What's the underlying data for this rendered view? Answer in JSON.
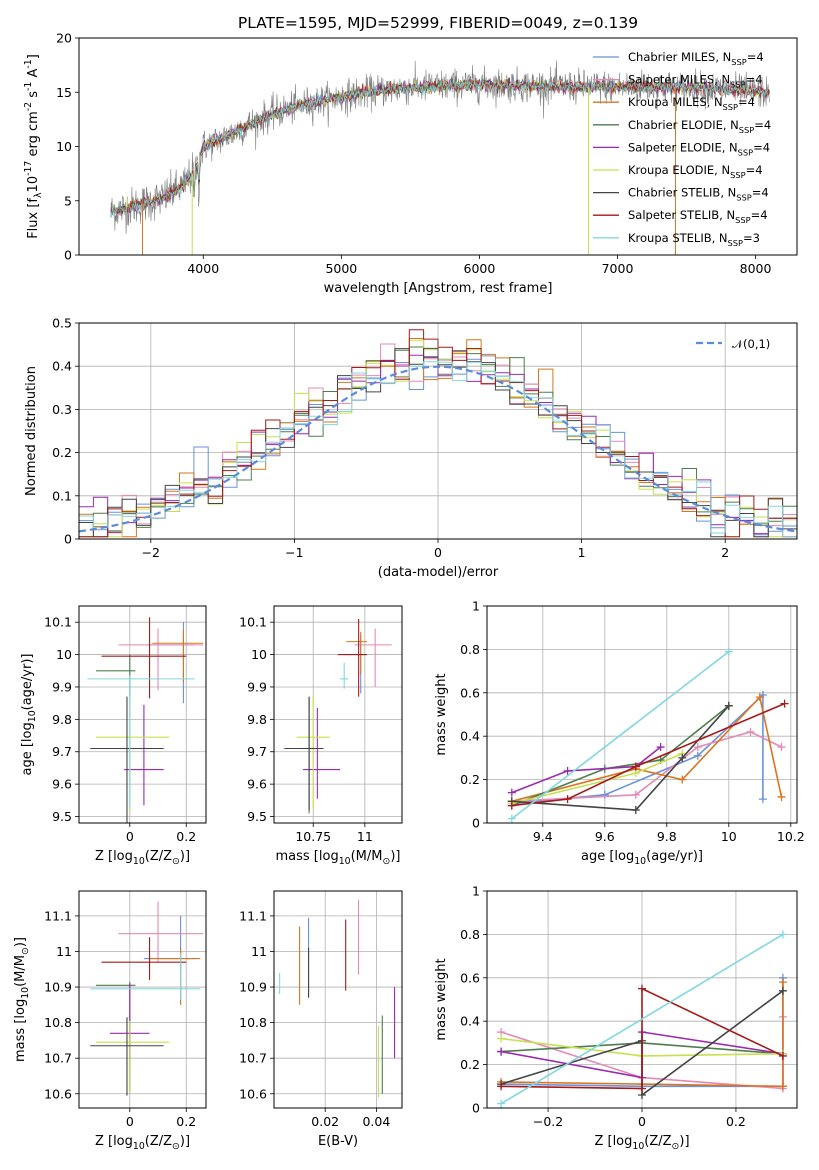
{
  "figure": {
    "title": "PLATE=1595, MJD=52999, FIBERID=0049, z=0.139"
  },
  "series_styles": [
    {
      "name": "Chabrier MILES, N$_{SSP}$=4",
      "color": "#6a91dc"
    },
    {
      "name": "Salpeter MILES, N$_{SSP}$=4",
      "color": "#e58ab5"
    },
    {
      "name": "Kroupa MILES, N$_{SSP}$=4",
      "color": "#d9751f"
    },
    {
      "name": "Chabrier ELODIE, N$_{SSP}$=4",
      "color": "#4e7d4e"
    },
    {
      "name": "Salpeter ELODIE, N$_{SSP}$=4",
      "color": "#9a2bb0"
    },
    {
      "name": "Kroupa ELODIE, N$_{SSP}$=4",
      "color": "#c7e04f"
    },
    {
      "name": "Chabrier STELIB, N$_{SSP}$=4",
      "color": "#444444"
    },
    {
      "name": "Salpeter STELIB, N$_{SSP}$=4",
      "color": "#a51a1a"
    },
    {
      "name": "Kroupa STELIB, N$_{SSP}$=3",
      "color": "#80d8df"
    }
  ],
  "chart_data": [
    {
      "id": "spectrum",
      "type": "line",
      "title": "PLATE=1595, MJD=52999, FIBERID=0049, z=0.139",
      "xlabel": "wavelength [Angstrom, rest frame]",
      "ylabel": "Flux [f$_\\lambda$10$^{-17}$ erg cm$^{-2}$ s$^{-1}$ A$^{-1}$]",
      "xlim": [
        3100,
        8300
      ],
      "ylim": [
        0,
        20
      ],
      "xticks": [
        4000,
        5000,
        6000,
        7000,
        8000
      ],
      "yticks": [
        0,
        5,
        10,
        15,
        20
      ],
      "grid": false,
      "legend_position": "top-right",
      "observed_range": [
        3330,
        8100
      ],
      "continuum_profile": {
        "x": [
          3330,
          3500,
          3700,
          3850,
          3950,
          4000,
          4150,
          4300,
          4500,
          4700,
          4900,
          5100,
          5300,
          5600,
          6000,
          6400,
          6800,
          7200,
          7600,
          8100
        ],
        "y": [
          4.0,
          4.5,
          5.2,
          6.3,
          8.0,
          10.0,
          10.8,
          11.8,
          13.0,
          13.8,
          14.3,
          14.8,
          15.2,
          15.5,
          15.7,
          15.6,
          15.5,
          15.5,
          15.4,
          15.0
        ]
      }
    },
    {
      "id": "residuals",
      "type": "step",
      "xlabel": "(data-model)/error",
      "ylabel": "Normed distribution",
      "xlim": [
        -2.5,
        2.5
      ],
      "ylim": [
        0,
        0.5
      ],
      "xticks": [
        -2,
        -1,
        0,
        1,
        2
      ],
      "yticks": [
        0.0,
        0.1,
        0.2,
        0.3,
        0.4,
        0.5
      ],
      "grid": true,
      "legend_position": "top-right",
      "legend": "$\\mathcal{N}(0,1)$",
      "bin_width": 0.1,
      "bins_start": -2.5
    },
    {
      "id": "age_vs_Z",
      "type": "errorbar",
      "xlabel": "Z [log$_{10}$(Z/Z$_\\odot$)]",
      "ylabel": "age  [log$_{10}$($age/yr$)]",
      "xlim": [
        -0.18,
        0.27
      ],
      "ylim": [
        9.48,
        10.15
      ],
      "xticks": [
        0.0,
        0.2
      ],
      "yticks": [
        9.5,
        9.6,
        9.7,
        9.8,
        9.9,
        10.0,
        10.1
      ],
      "grid": true,
      "points": [
        {
          "x": 0.19,
          "xerr": [
            0.13,
            0.04
          ],
          "y": 10.03,
          "yerr": [
            0.18,
            0.07
          ]
        },
        {
          "x": 0.1,
          "xerr": [
            0.14,
            0.16
          ],
          "y": 10.03,
          "yerr": [
            0.14,
            0.05
          ]
        },
        {
          "x": 0.19,
          "xerr": [
            0.11,
            0.07
          ],
          "y": 10.035,
          "yerr": [
            0.12,
            0.04
          ]
        },
        {
          "x": 0.0,
          "xerr": [
            0.12,
            0.02
          ],
          "y": 9.95,
          "yerr": [
            0.08,
            0.05
          ]
        },
        {
          "x": 0.05,
          "xerr": [
            0.07,
            0.07
          ],
          "y": 9.645,
          "yerr": [
            0.11,
            0.2
          ]
        },
        {
          "x": 0.0,
          "xerr": [
            0.12,
            0.14
          ],
          "y": 9.745,
          "yerr": [
            0.23,
            0.13
          ]
        },
        {
          "x": -0.01,
          "xerr": [
            0.13,
            0.13
          ],
          "y": 9.71,
          "yerr": [
            0.25,
            0.16
          ]
        },
        {
          "x": 0.07,
          "xerr": [
            0.17,
            0.13
          ],
          "y": 9.995,
          "yerr": [
            0.13,
            0.12
          ]
        },
        {
          "x": 0.0,
          "xerr": [
            0.15,
            0.23
          ],
          "y": 9.925,
          "yerr": [
            0.4,
            0.01
          ]
        }
      ]
    },
    {
      "id": "age_vs_mass",
      "type": "errorbar",
      "xlabel": "mass [log$_{10}$($M/M_\\odot$)]",
      "ylabel": "",
      "xlim": [
        10.56,
        11.18
      ],
      "ylim": [
        9.48,
        10.15
      ],
      "xticks": [
        10.75,
        11.0
      ],
      "yticks": [
        9.5,
        9.6,
        9.7,
        9.8,
        9.9,
        10.0,
        10.1
      ],
      "grid": true,
      "points": [
        {
          "x": 10.98,
          "xerr": [
            0.08,
            0.03
          ],
          "y": 10.0,
          "yerr": [
            0.12,
            0.06
          ]
        },
        {
          "x": 11.05,
          "xerr": [
            0.1,
            0.08
          ],
          "y": 10.03,
          "yerr": [
            0.13,
            0.05
          ]
        },
        {
          "x": 10.98,
          "xerr": [
            0.07,
            0.03
          ],
          "y": 10.04,
          "yerr": [
            0.1,
            0.03
          ]
        },
        {
          "x": 10.73,
          "xerr": [
            0.04,
            0.03
          ],
          "y": 9.71,
          "yerr": [
            0.2,
            0.16
          ]
        },
        {
          "x": 10.77,
          "xerr": [
            0.07,
            0.11
          ],
          "y": 9.645,
          "yerr": [
            0.09,
            0.19
          ]
        },
        {
          "x": 10.75,
          "xerr": [
            0.08,
            0.08
          ],
          "y": 9.745,
          "yerr": [
            0.22,
            0.13
          ]
        },
        {
          "x": 10.73,
          "xerr": [
            0.12,
            0.07
          ],
          "y": 9.71,
          "yerr": [
            0.19,
            0.16
          ]
        },
        {
          "x": 10.97,
          "xerr": [
            0.1,
            0.04
          ],
          "y": 10.0,
          "yerr": [
            0.13,
            0.11
          ]
        },
        {
          "x": 10.9,
          "xerr": [
            0.02,
            0.02
          ],
          "y": 9.925,
          "yerr": [
            0.03,
            0.05
          ]
        }
      ]
    },
    {
      "id": "weight_vs_age",
      "type": "line",
      "xlabel": "age  [log$_{10}$($age/yr$)]",
      "ylabel": "mass weight",
      "xlim": [
        9.22,
        10.22
      ],
      "ylim": [
        0,
        1.0
      ],
      "xticks": [
        9.4,
        9.6,
        9.8,
        10.0,
        10.2
      ],
      "yticks": [
        0.0,
        0.2,
        0.4,
        0.6,
        0.8,
        1.0
      ],
      "grid": true,
      "series": [
        {
          "x": [
            9.3,
            9.6,
            9.9,
            10.11,
            10.11
          ],
          "y": [
            0.09,
            0.13,
            0.31,
            0.59,
            0.11
          ]
        },
        {
          "x": [
            9.3,
            9.7,
            9.9,
            10.07,
            10.17
          ],
          "y": [
            0.1,
            0.13,
            0.35,
            0.42,
            0.35
          ]
        },
        {
          "x": [
            9.3,
            9.7,
            9.85,
            10.1,
            10.17
          ],
          "y": [
            0.1,
            0.25,
            0.2,
            0.58,
            0.12
          ]
        },
        {
          "x": [
            9.3,
            9.6,
            9.78,
            10.0
          ],
          "y": [
            0.08,
            0.25,
            0.29,
            0.54
          ]
        },
        {
          "x": [
            9.3,
            9.48,
            9.7,
            9.78
          ],
          "y": [
            0.14,
            0.24,
            0.26,
            0.35
          ]
        },
        {
          "x": [
            9.3,
            9.7,
            9.85
          ],
          "y": [
            0.09,
            0.23,
            0.32
          ]
        },
        {
          "x": [
            9.3,
            9.7,
            9.85,
            10.0
          ],
          "y": [
            0.1,
            0.06,
            0.3,
            0.54
          ]
        },
        {
          "x": [
            9.3,
            9.48,
            9.7,
            10.18
          ],
          "y": [
            0.08,
            0.11,
            0.26,
            0.55
          ]
        },
        {
          "x": [
            9.3,
            10.0
          ],
          "y": [
            0.02,
            0.79
          ]
        }
      ]
    },
    {
      "id": "mass_vs_Z",
      "type": "errorbar",
      "xlabel": "Z [log$_{10}$(Z/Z$_\\odot$)]",
      "ylabel": "mass [log$_{10}$($M/M_\\odot$)]",
      "xlim": [
        -0.18,
        0.27
      ],
      "ylim": [
        10.56,
        11.17
      ],
      "xticks": [
        0.0,
        0.2
      ],
      "yticks": [
        10.6,
        10.7,
        10.8,
        10.9,
        11.0,
        11.1
      ],
      "grid": true,
      "points": [
        {
          "x": 0.18,
          "xerr": [
            0.13,
            0.05
          ],
          "y": 10.98,
          "yerr": [
            0.13,
            0.12
          ]
        },
        {
          "x": 0.1,
          "xerr": [
            0.14,
            0.16
          ],
          "y": 11.05,
          "yerr": [
            0.08,
            0.09
          ]
        },
        {
          "x": 0.18,
          "xerr": [
            0.11,
            0.07
          ],
          "y": 10.98,
          "yerr": [
            0.13,
            0.03
          ]
        },
        {
          "x": 0.0,
          "xerr": [
            0.12,
            0.02
          ],
          "y": 10.905,
          "yerr": [
            0.3,
            0.01
          ]
        },
        {
          "x": 0.0,
          "xerr": [
            0.07,
            0.07
          ],
          "y": 10.77,
          "yerr": [
            0.07,
            0.14
          ]
        },
        {
          "x": 0.0,
          "xerr": [
            0.12,
            0.14
          ],
          "y": 10.745,
          "yerr": [
            0.14,
            0.06
          ]
        },
        {
          "x": -0.01,
          "xerr": [
            0.13,
            0.13
          ],
          "y": 10.735,
          "yerr": [
            0.14,
            0.08
          ]
        },
        {
          "x": 0.07,
          "xerr": [
            0.17,
            0.13
          ],
          "y": 10.97,
          "yerr": [
            0.05,
            0.07
          ]
        },
        {
          "x": 0.18,
          "xerr": [
            0.32,
            0.07
          ],
          "y": 10.895,
          "yerr": [
            0.03,
            0.1
          ]
        }
      ]
    },
    {
      "id": "mass_vs_ebv",
      "type": "errorbar",
      "xlabel": "E(B-V)",
      "ylabel": "",
      "xlim": [
        0.0,
        0.05
      ],
      "ylim": [
        10.56,
        11.17
      ],
      "xticks": [
        0.02,
        0.04
      ],
      "yticks": [
        10.6,
        10.7,
        10.8,
        10.9,
        11.0,
        11.1
      ],
      "grid": true,
      "points": [
        {
          "x": 0.0135,
          "y": 10.975,
          "yerr": [
            0.1,
            0.12
          ]
        },
        {
          "x": 0.033,
          "y": 11.035,
          "yerr": [
            0.1,
            0.11
          ]
        },
        {
          "x": 0.01,
          "y": 10.96,
          "yerr": [
            0.11,
            0.11
          ]
        },
        {
          "x": 0.0423,
          "y": 10.7,
          "yerr": [
            0.1,
            0.12
          ]
        },
        {
          "x": 0.0471,
          "y": 10.8,
          "yerr": [
            0.1,
            0.1
          ]
        },
        {
          "x": 0.0408,
          "y": 10.69,
          "yerr": [
            0.1,
            0.1
          ]
        },
        {
          "x": 0.0135,
          "y": 10.94,
          "yerr": [
            0.07,
            0.07
          ]
        },
        {
          "x": 0.028,
          "y": 10.99,
          "yerr": [
            0.1,
            0.1
          ]
        },
        {
          "x": 0.0022,
          "y": 10.91,
          "yerr": [
            0.03,
            0.03
          ]
        }
      ]
    },
    {
      "id": "weight_vs_Z",
      "type": "line",
      "xlabel": "Z [log$_{10}$(Z/Z$_\\odot$)]",
      "ylabel": "mass weight",
      "xlim": [
        -0.33,
        0.33
      ],
      "ylim": [
        0,
        1.0
      ],
      "xticks": [
        -0.2,
        0.0,
        0.2
      ],
      "yticks": [
        0.0,
        0.2,
        0.4,
        0.6,
        0.8,
        1.0
      ],
      "grid": true,
      "series": [
        {
          "x": [
            -0.3,
            0.0,
            0.3,
            0.3
          ],
          "y": [
            0.11,
            0.1,
            0.1,
            0.6
          ]
        },
        {
          "x": [
            -0.3,
            0.0,
            0.3,
            0.3
          ],
          "y": [
            0.35,
            0.14,
            0.09,
            0.42
          ]
        },
        {
          "x": [
            -0.3,
            0.0,
            0.3,
            0.3
          ],
          "y": [
            0.12,
            0.11,
            0.1,
            0.58
          ]
        },
        {
          "x": [
            -0.3,
            0.0,
            0.3
          ],
          "y": [
            0.26,
            0.3,
            0.25
          ]
        },
        {
          "x": [
            -0.3,
            0.0,
            0.0,
            0.3
          ],
          "y": [
            0.26,
            0.14,
            0.35,
            0.25
          ]
        },
        {
          "x": [
            -0.3,
            0.0,
            0.3
          ],
          "y": [
            0.32,
            0.24,
            0.25
          ]
        },
        {
          "x": [
            -0.3,
            0.0,
            0.0,
            0.3
          ],
          "y": [
            0.11,
            0.31,
            0.06,
            0.54
          ]
        },
        {
          "x": [
            -0.3,
            0.0,
            0.0,
            0.3
          ],
          "y": [
            0.1,
            0.09,
            0.55,
            0.24
          ]
        },
        {
          "x": [
            -0.3,
            0.3
          ],
          "y": [
            0.02,
            0.8
          ]
        }
      ]
    }
  ]
}
